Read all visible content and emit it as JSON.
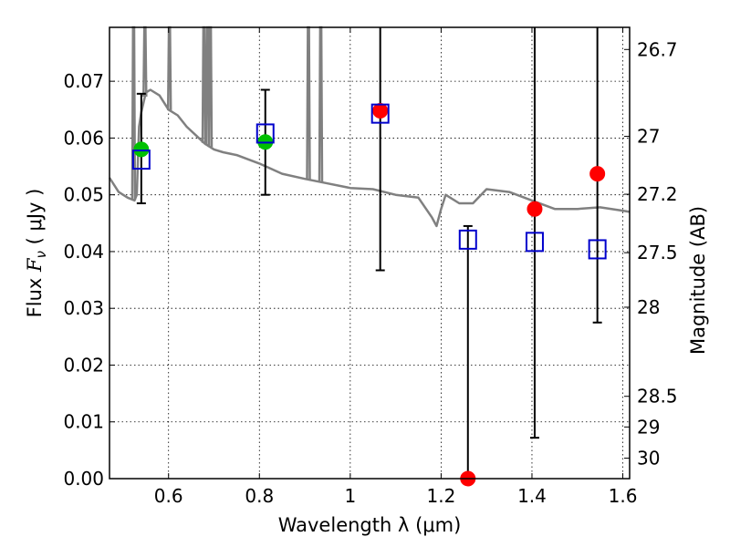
{
  "chart_data": {
    "type": "scatter",
    "xlabel": "Wavelength  λ (μm)",
    "ylabel": "Flux  Fν  ( μJy )",
    "ylabel_right": "Magnitude (AB)",
    "xlim": [
      0.47,
      1.615
    ],
    "ylim": [
      0.0,
      0.0795
    ],
    "grid": true,
    "x_ticks": [
      0.6,
      0.8,
      1.0,
      1.2,
      1.4,
      1.6
    ],
    "x_tick_labels": [
      "0.6",
      "0.8",
      "1",
      "1.2",
      "1.4",
      "1.6"
    ],
    "y_ticks": [
      0.0,
      0.01,
      0.02,
      0.03,
      0.04,
      0.05,
      0.06,
      0.07
    ],
    "y_tick_labels": [
      "0.00",
      "0.01",
      "0.02",
      "0.03",
      "0.04",
      "0.05",
      "0.06",
      "0.07"
    ],
    "right_ticks_flux": [
      0.0756,
      0.0603,
      0.0501,
      0.0398,
      0.0302,
      0.0145,
      0.0091,
      0.0036
    ],
    "right_tick_labels": [
      "26.7",
      "27",
      "27.2",
      "27.5",
      "28",
      "28.5",
      "29",
      "30"
    ],
    "sed_model_spectrum": {
      "color": "#808080",
      "x": [
        0.47,
        0.49,
        0.51,
        0.525,
        0.53,
        0.535,
        0.54,
        0.55,
        0.56,
        0.58,
        0.6,
        0.62,
        0.64,
        0.66,
        0.68,
        0.7,
        0.72,
        0.75,
        0.8,
        0.85,
        0.9,
        0.95,
        1.0,
        1.05,
        1.1,
        1.15,
        1.18,
        1.19,
        1.2,
        1.21,
        1.24,
        1.27,
        1.3,
        1.35,
        1.4,
        1.45,
        1.5,
        1.55,
        1.6,
        1.615
      ],
      "y": [
        0.053,
        0.0505,
        0.0495,
        0.049,
        0.05,
        0.062,
        0.0645,
        0.068,
        0.0685,
        0.0675,
        0.065,
        0.064,
        0.062,
        0.0605,
        0.059,
        0.058,
        0.0575,
        0.057,
        0.0555,
        0.0537,
        0.0528,
        0.052,
        0.0512,
        0.051,
        0.05,
        0.0495,
        0.046,
        0.0445,
        0.0475,
        0.05,
        0.0485,
        0.0485,
        0.051,
        0.0505,
        0.049,
        0.0475,
        0.0475,
        0.0478,
        0.0472,
        0.047
      ],
      "emission_spikes": [
        {
          "x": 0.523,
          "y_top": 0.0795
        },
        {
          "x": 0.548,
          "y_top": 0.0795
        },
        {
          "x": 0.602,
          "y_top": 0.0795
        },
        {
          "x": 0.678,
          "y_top": 0.0795
        },
        {
          "x": 0.686,
          "y_top": 0.0795
        },
        {
          "x": 0.692,
          "y_top": 0.0795
        },
        {
          "x": 0.908,
          "y_top": 0.0795
        },
        {
          "x": 0.935,
          "y_top": 0.0795
        }
      ]
    },
    "series": [
      {
        "marker": "circle-filled",
        "color": "#00c000",
        "x": [
          0.54,
          0.813
        ],
        "y": [
          0.058,
          0.0593
        ],
        "yerr_low": [
          0.0485,
          0.05
        ],
        "yerr_high": [
          0.0678,
          0.0685
        ]
      },
      {
        "marker": "circle-filled",
        "color": "#ff0000",
        "x": [
          1.066,
          1.259,
          1.406,
          1.544
        ],
        "y": [
          0.0648,
          0.0,
          0.0475,
          0.0537
        ],
        "yerr_low": [
          0.0367,
          0.0,
          0.0072,
          0.0275
        ],
        "yerr_high": [
          0.0795,
          0.0445,
          0.0795,
          0.0795
        ]
      },
      {
        "marker": "square-open",
        "color": "#0000cc",
        "x": [
          0.54,
          0.813,
          1.066,
          1.259,
          1.406,
          1.544
        ],
        "y": [
          0.0562,
          0.0608,
          0.0643,
          0.0421,
          0.0417,
          0.0404
        ]
      }
    ]
  }
}
